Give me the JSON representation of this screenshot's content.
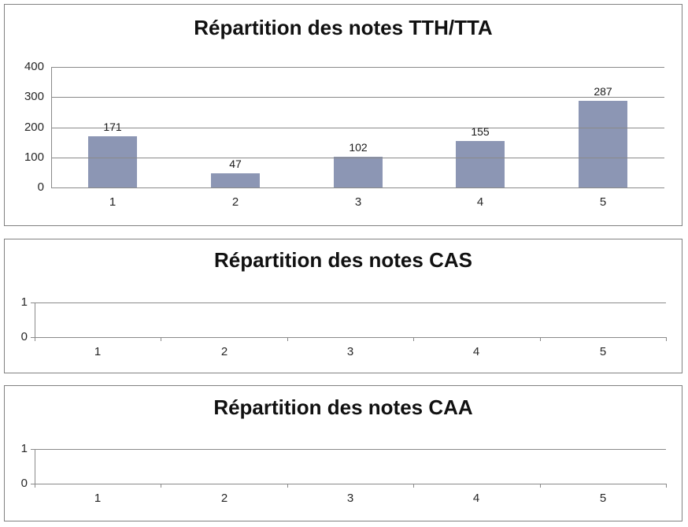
{
  "styles": {
    "background": "#FFFFFF",
    "panel_border_color": "#818181",
    "bar_color": "#8C96B4",
    "grid_color": "#8A8A8A",
    "axis_color": "#8A8A8A",
    "title_color": "#111111",
    "label_color": "#262626"
  },
  "chart_data": [
    {
      "type": "bar",
      "title": "Répartition des notes TTH/TTA",
      "categories": [
        "1",
        "2",
        "3",
        "4",
        "5"
      ],
      "values": [
        171,
        47,
        102,
        155,
        287
      ],
      "data_labels": [
        "171",
        "47",
        "102",
        "155",
        "287"
      ],
      "show_data_labels": true,
      "xlabel": "",
      "ylabel": "",
      "ylim": [
        0,
        400
      ],
      "yticks": [
        400,
        300,
        200,
        100,
        0
      ],
      "grid": true,
      "legend": "none"
    },
    {
      "type": "bar",
      "title": "Répartition des notes CAS",
      "categories": [
        "1",
        "2",
        "3",
        "4",
        "5"
      ],
      "values": [
        0,
        0,
        0,
        0,
        0
      ],
      "show_data_labels": false,
      "xlabel": "",
      "ylabel": "",
      "ylim": [
        0,
        1
      ],
      "yticks": [
        1,
        0
      ],
      "grid": true,
      "legend": "none"
    },
    {
      "type": "bar",
      "title": "Répartition des notes CAA",
      "categories": [
        "1",
        "2",
        "3",
        "4",
        "5"
      ],
      "values": [
        0,
        0,
        0,
        0,
        0
      ],
      "show_data_labels": false,
      "xlabel": "",
      "ylabel": "",
      "ylim": [
        0,
        1
      ],
      "yticks": [
        1,
        0
      ],
      "grid": true,
      "legend": "none"
    }
  ]
}
